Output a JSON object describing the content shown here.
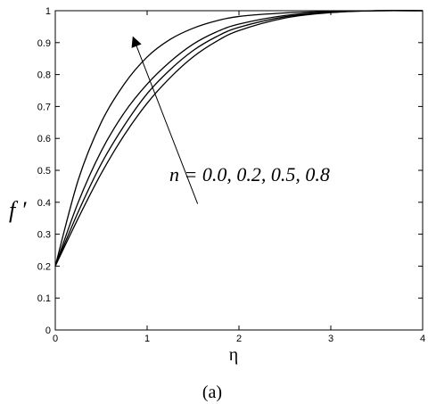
{
  "chart_data": {
    "type": "line",
    "xlabel": "η",
    "ylabel": "f ′",
    "xlim": [
      0,
      4
    ],
    "ylim": [
      0,
      1
    ],
    "xticks": [
      "0",
      "1",
      "2",
      "3",
      "4"
    ],
    "yticks": [
      "0",
      "0.1",
      "0.2",
      "0.3",
      "0.4",
      "0.5",
      "0.6",
      "0.7",
      "0.8",
      "0.9",
      "1"
    ],
    "grid": false,
    "series": [
      {
        "x": [
          0,
          0.25,
          0.5,
          0.75,
          1.0,
          1.25,
          1.5,
          1.75,
          2.0,
          2.5,
          3.0,
          3.5,
          4.0
        ],
        "values": [
          0.2,
          0.47,
          0.65,
          0.77,
          0.855,
          0.91,
          0.945,
          0.968,
          0.982,
          0.993,
          0.998,
          1.0,
          1.0
        ]
      },
      {
        "x": [
          0,
          0.25,
          0.5,
          0.75,
          1.0,
          1.25,
          1.5,
          1.75,
          2.0,
          2.5,
          3.0,
          3.5,
          4.0
        ],
        "values": [
          0.2,
          0.4,
          0.56,
          0.68,
          0.77,
          0.84,
          0.895,
          0.933,
          0.958,
          0.985,
          0.996,
          1.0,
          1.0
        ]
      },
      {
        "x": [
          0,
          0.25,
          0.5,
          0.75,
          1.0,
          1.25,
          1.5,
          1.75,
          2.0,
          2.5,
          3.0,
          3.5,
          4.0
        ],
        "values": [
          0.2,
          0.37,
          0.52,
          0.64,
          0.74,
          0.815,
          0.875,
          0.918,
          0.948,
          0.981,
          0.995,
          1.0,
          1.0
        ]
      },
      {
        "x": [
          0,
          0.25,
          0.5,
          0.75,
          1.0,
          1.25,
          1.5,
          1.75,
          2.0,
          2.5,
          3.0,
          3.5,
          4.0
        ],
        "values": [
          0.2,
          0.35,
          0.49,
          0.61,
          0.71,
          0.79,
          0.855,
          0.903,
          0.938,
          0.977,
          0.994,
          1.0,
          1.0
        ]
      }
    ],
    "annotation": {
      "text": "n = 0.0, 0.2, 0.5, 0.8",
      "arrow_from": [
        1.55,
        0.395
      ],
      "arrow_to": [
        0.85,
        0.915
      ]
    },
    "caption": "(a)"
  }
}
